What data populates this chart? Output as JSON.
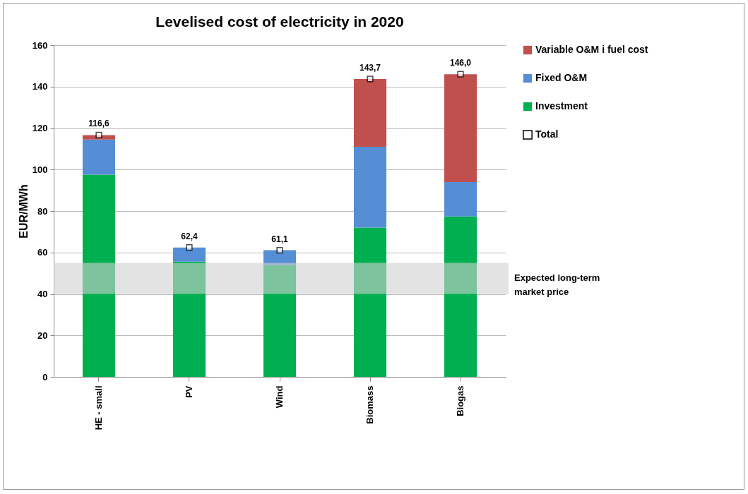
{
  "chart_data": {
    "type": "bar",
    "title": "Levelised cost of electricity in 2020",
    "ylabel": "EUR/MWh",
    "categories": [
      "HE - small",
      "PV",
      "Wind",
      "Biomass",
      "Biogas"
    ],
    "stacked": true,
    "ylim": [
      0,
      160
    ],
    "yticks": [
      0,
      20,
      40,
      60,
      80,
      100,
      120,
      140,
      160
    ],
    "grid": "y",
    "legend": "right",
    "series": [
      {
        "name": "Investment",
        "color": "#00b050",
        "values": [
          97.5,
          55.6,
          54.0,
          72.0,
          77.4
        ]
      },
      {
        "name": "Fixed O&M",
        "color": "#558ed5",
        "values": [
          17.0,
          6.8,
          7.1,
          39.0,
          16.6
        ]
      },
      {
        "name": "Variable O&M i fuel cost",
        "color": "#c0504d",
        "values": [
          2.1,
          0,
          0,
          32.7,
          52.0
        ]
      },
      {
        "name": "Total",
        "type": "scatter",
        "marker": "square",
        "x": [
          "HE - small",
          "PV",
          "Wind",
          "Biomass",
          "Biogas"
        ],
        "values": [
          116.6,
          62.4,
          61.1,
          143.7,
          146.0
        ],
        "value_labels": [
          "116,6",
          "62,4",
          "61,1",
          "143,7",
          "146,0"
        ]
      }
    ],
    "bands": [
      {
        "axis": "y",
        "from": 40,
        "to": 55,
        "label": "Expected long-term market price",
        "color": "#d0d0d0"
      }
    ]
  }
}
